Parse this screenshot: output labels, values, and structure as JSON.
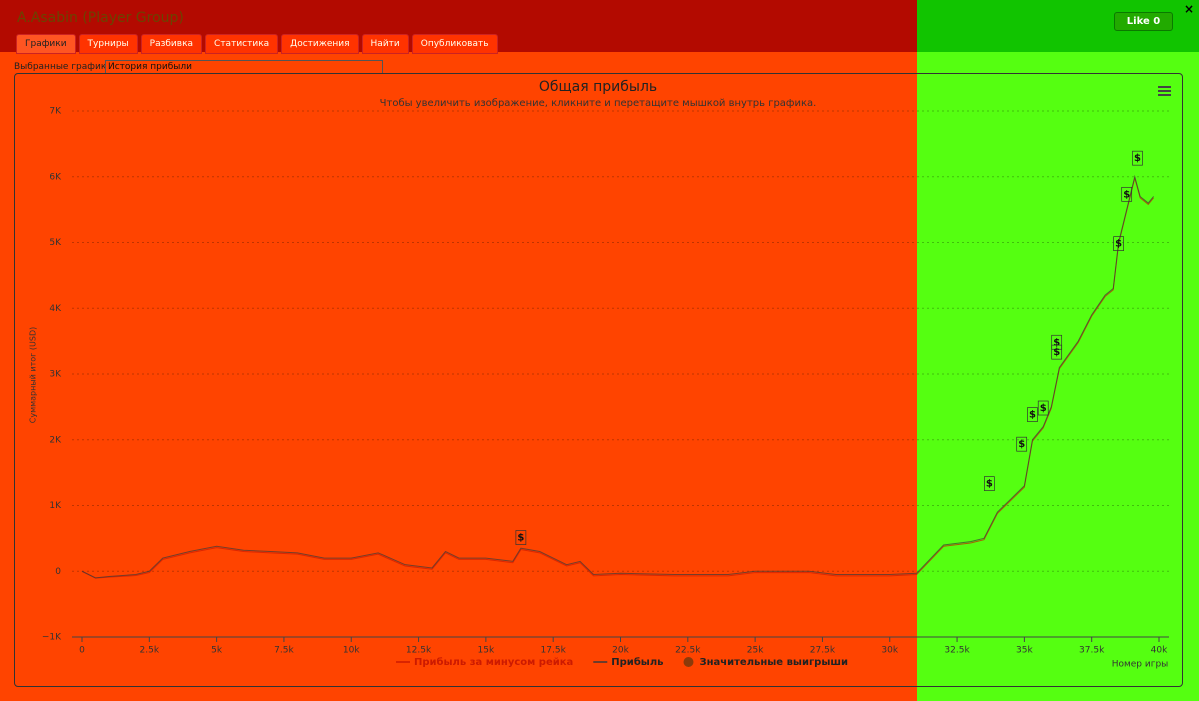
{
  "header": {
    "title": "A.Asabin (Player Group)",
    "like": "Like 0",
    "close": "×",
    "tabs": [
      "Графики",
      "Турниры",
      "Разбивка",
      "Статистика",
      "Достижения",
      "Найти",
      "Опубликовать"
    ]
  },
  "selector": {
    "label": "Выбранные графики:",
    "value": "История прибыли"
  },
  "chart_data": {
    "type": "line",
    "title": "Общая прибыль",
    "subtitle": "Чтобы увеличить изображение, кликните и перетащите мышкой внутрь графика.",
    "y_label": "Суммарный итог (USD)",
    "x_label": "Номер игры",
    "x": [
      0,
      500,
      1000,
      2000,
      2500,
      3000,
      4000,
      5000,
      6000,
      7000,
      8000,
      9000,
      10000,
      11000,
      12000,
      13000,
      13500,
      14000,
      15000,
      16000,
      16300,
      17000,
      18000,
      18500,
      19000,
      20000,
      22000,
      24000,
      25000,
      27000,
      28000,
      30000,
      31000,
      32000,
      33000,
      33500,
      34000,
      34500,
      35000,
      35300,
      35700,
      36000,
      36300,
      37000,
      37500,
      38000,
      38300,
      38500,
      38800,
      39100,
      39300,
      39600,
      39800
    ],
    "series": [
      {
        "name": "Прибыль за минусом рейка",
        "color": "#cc1a00",
        "values": [
          0,
          -105,
          -90,
          -65,
          -20,
          180,
          280,
          360,
          300,
          280,
          260,
          180,
          180,
          260,
          80,
          30,
          280,
          180,
          180,
          130,
          330,
          280,
          80,
          130,
          -70,
          -50,
          -70,
          -70,
          -20,
          -20,
          -70,
          -70,
          -50,
          380,
          430,
          480,
          880,
          1080,
          1280,
          1980,
          2180,
          2480,
          3080,
          3480,
          3880,
          4180,
          4280,
          4980,
          5480,
          5980,
          5680,
          5580,
          5680
        ]
      },
      {
        "name": "Прибыль",
        "color": "#3a3a3a",
        "values": [
          0,
          -100,
          -80,
          -50,
          0,
          200,
          300,
          380,
          320,
          300,
          280,
          200,
          200,
          280,
          100,
          50,
          300,
          200,
          200,
          150,
          350,
          300,
          100,
          150,
          -50,
          -30,
          -50,
          -50,
          0,
          0,
          -50,
          -50,
          -30,
          400,
          450,
          500,
          900,
          1100,
          1300,
          2000,
          2200,
          2500,
          3100,
          3500,
          3900,
          4200,
          4300,
          5000,
          5500,
          6000,
          5700,
          5600,
          5700
        ]
      }
    ],
    "wins": {
      "name": "Значительные выигрыши",
      "color": "#8b3a0a",
      "marker_label": "$",
      "x": [
        16300,
        33700,
        34900,
        35300,
        35700,
        36200,
        36200,
        38500,
        38800,
        39200
      ],
      "values": [
        330,
        1150,
        1750,
        2200,
        2300,
        3300,
        3150,
        4800,
        5550,
        6100
      ]
    },
    "xlim": [
      0,
      40000
    ],
    "ylim": [
      -1000,
      7000
    ],
    "xticks": [
      {
        "value": 0,
        "label": "0"
      },
      {
        "value": 2500,
        "label": "2.5k"
      },
      {
        "value": 5000,
        "label": "5k"
      },
      {
        "value": 7500,
        "label": "7.5k"
      },
      {
        "value": 10000,
        "label": "10k"
      },
      {
        "value": 12500,
        "label": "12.5k"
      },
      {
        "value": 15000,
        "label": "15k"
      },
      {
        "value": 17500,
        "label": "17.5k"
      },
      {
        "value": 20000,
        "label": "20k"
      },
      {
        "value": 22500,
        "label": "22.5k"
      },
      {
        "value": 25000,
        "label": "25k"
      },
      {
        "value": 27500,
        "label": "27.5k"
      },
      {
        "value": 30000,
        "label": "30k"
      },
      {
        "value": 32500,
        "label": "32.5k"
      },
      {
        "value": 35000,
        "label": "35k"
      },
      {
        "value": 37500,
        "label": "37.5k"
      },
      {
        "value": 40000,
        "label": "40k"
      }
    ],
    "yticks": [
      {
        "value": -1000,
        "label": "−1K"
      },
      0,
      {
        "value": 1000,
        "label": "1K"
      },
      {
        "value": 2000,
        "label": "2K"
      },
      {
        "value": 3000,
        "label": "3K"
      },
      {
        "value": 4000,
        "label": "4K"
      },
      {
        "value": 5000,
        "label": "5K"
      },
      {
        "value": 6000,
        "label": "6K"
      },
      {
        "value": 7000,
        "label": "7K"
      }
    ],
    "grid": true
  }
}
